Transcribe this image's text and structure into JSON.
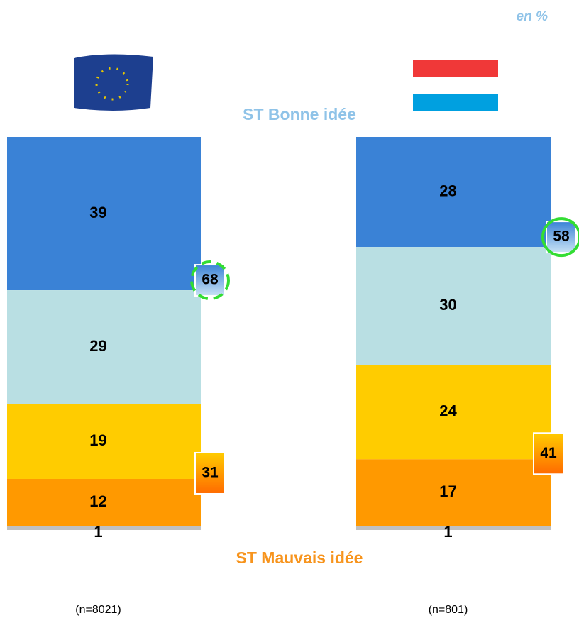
{
  "chart_data": {
    "type": "stacked_bar",
    "unit_note": "en %",
    "categories": [
      null,
      null
    ],
    "series": [
      {
        "color": "#3a82d6",
        "values": [
          39,
          28
        ]
      },
      {
        "color": "#b9dfe3",
        "values": [
          29,
          30
        ]
      },
      {
        "color": "#ffcc00",
        "values": [
          19,
          24
        ]
      },
      {
        "color": "#ff9900",
        "values": [
          12,
          17
        ]
      },
      {
        "color": "#c0c0c0",
        "values": [
          1,
          1
        ]
      }
    ],
    "summaries": [
      {
        "label": "ST Bonne idée",
        "color": "#8fc3e8",
        "values": [
          68,
          58
        ]
      },
      {
        "label": "ST Mauvais idée",
        "color": "#f7941d",
        "values": [
          31,
          41
        ]
      }
    ],
    "sample_sizes": [
      "(n=8021)",
      "(n=801)"
    ],
    "ylim": [
      0,
      100
    ]
  }
}
